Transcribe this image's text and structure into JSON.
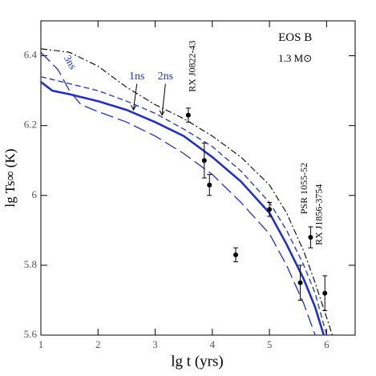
{
  "chart_data": {
    "type": "line",
    "x_label": "lg t   (yrs)",
    "y_label": "lg Ts∞ (K)",
    "xlim": [
      1,
      6.5
    ],
    "ylim": [
      5.6,
      6.5
    ],
    "xticks": [
      1,
      2,
      3,
      4,
      5,
      6
    ],
    "yticks": [
      5.6,
      5.8,
      6,
      6.2,
      6.4
    ],
    "annotations": [
      "EOS B",
      "1.3 M⊙",
      "1ns",
      "2ns",
      "3ns",
      "RX J0822-43",
      "PSR 1055-52",
      "RX J1856-3754"
    ],
    "series": [
      {
        "color": "#1f2fd0",
        "dash": "solid",
        "x": [
          1,
          1.2,
          1.5,
          2,
          2.5,
          3,
          3.5,
          4,
          4.5,
          5,
          5.3,
          5.6,
          5.8,
          5.95
        ],
        "values": [
          6.325,
          6.3,
          6.29,
          6.27,
          6.245,
          6.21,
          6.17,
          6.11,
          6.04,
          5.95,
          5.86,
          5.76,
          5.68,
          5.6
        ]
      },
      {
        "color": "#1f2fd0",
        "dash": "short",
        "x": [
          1,
          1.5,
          2,
          2.5,
          3,
          3.5,
          4,
          4.5,
          5,
          5.3,
          5.6,
          5.8,
          6
        ],
        "values": [
          6.34,
          6.32,
          6.3,
          6.27,
          6.235,
          6.19,
          6.14,
          6.07,
          5.98,
          5.9,
          5.8,
          5.72,
          5.6
        ]
      },
      {
        "color": "#1f2fd0",
        "dash": "long",
        "x": [
          1,
          1.3,
          1.5,
          1.7,
          2,
          2.5,
          3,
          3.5,
          4,
          4.5,
          5,
          5.3,
          5.6,
          5.8
        ],
        "values": [
          6.41,
          6.36,
          6.3,
          6.26,
          6.24,
          6.21,
          6.17,
          6.12,
          6.06,
          5.98,
          5.89,
          5.8,
          5.69,
          5.6
        ]
      },
      {
        "color": "#000000",
        "dash": "dashdot",
        "x": [
          1,
          1.5,
          2,
          2.5,
          3,
          3.5,
          4,
          4.5,
          5,
          5.3,
          5.6,
          5.8,
          6,
          6.1
        ],
        "values": [
          6.42,
          6.41,
          6.37,
          6.31,
          6.26,
          6.22,
          6.17,
          6.11,
          6.03,
          5.95,
          5.84,
          5.75,
          5.65,
          5.6
        ]
      }
    ],
    "observations": {
      "color": "#000000",
      "x": [
        3.58,
        3.86,
        3.95,
        4.41,
        5.0,
        5.54,
        5.72,
        5.97
      ],
      "values": [
        6.23,
        6.1,
        6.03,
        5.83,
        5.96,
        5.75,
        5.88,
        5.72
      ],
      "errors": [
        0.02,
        0.05,
        0.03,
        0.02,
        0.02,
        0.05,
        0.03,
        0.05
      ]
    }
  }
}
